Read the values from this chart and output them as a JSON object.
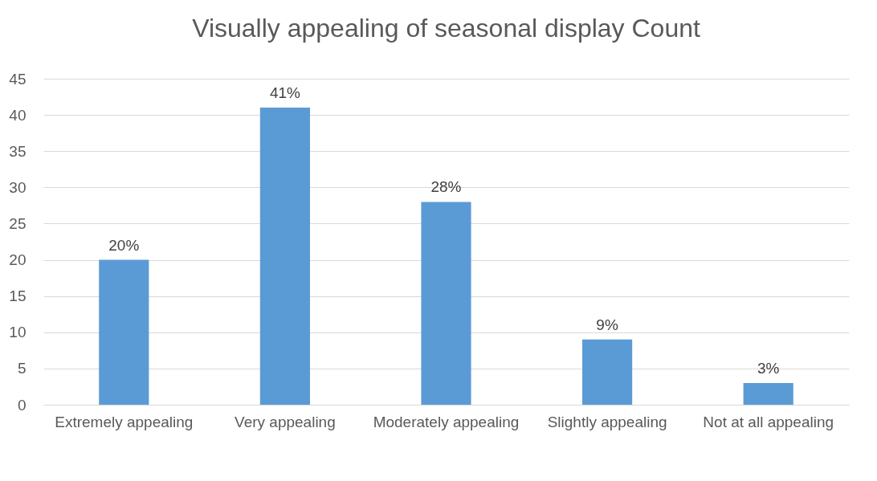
{
  "chart_data": {
    "type": "bar",
    "title": "Visually appealing of seasonal display Count",
    "categories": [
      "Extremely appealing",
      "Very appealing",
      "Moderately appealing",
      "Slightly appealing",
      "Not at all appealing"
    ],
    "values": [
      20,
      41,
      28,
      9,
      3
    ],
    "value_labels": [
      "20%",
      "41%",
      "28%",
      "9%",
      "3%"
    ],
    "color": "#5b9bd5",
    "ylim": [
      0,
      45
    ],
    "yticks": [
      0,
      5,
      10,
      15,
      20,
      25,
      30,
      35,
      40,
      45
    ],
    "grid": true
  }
}
